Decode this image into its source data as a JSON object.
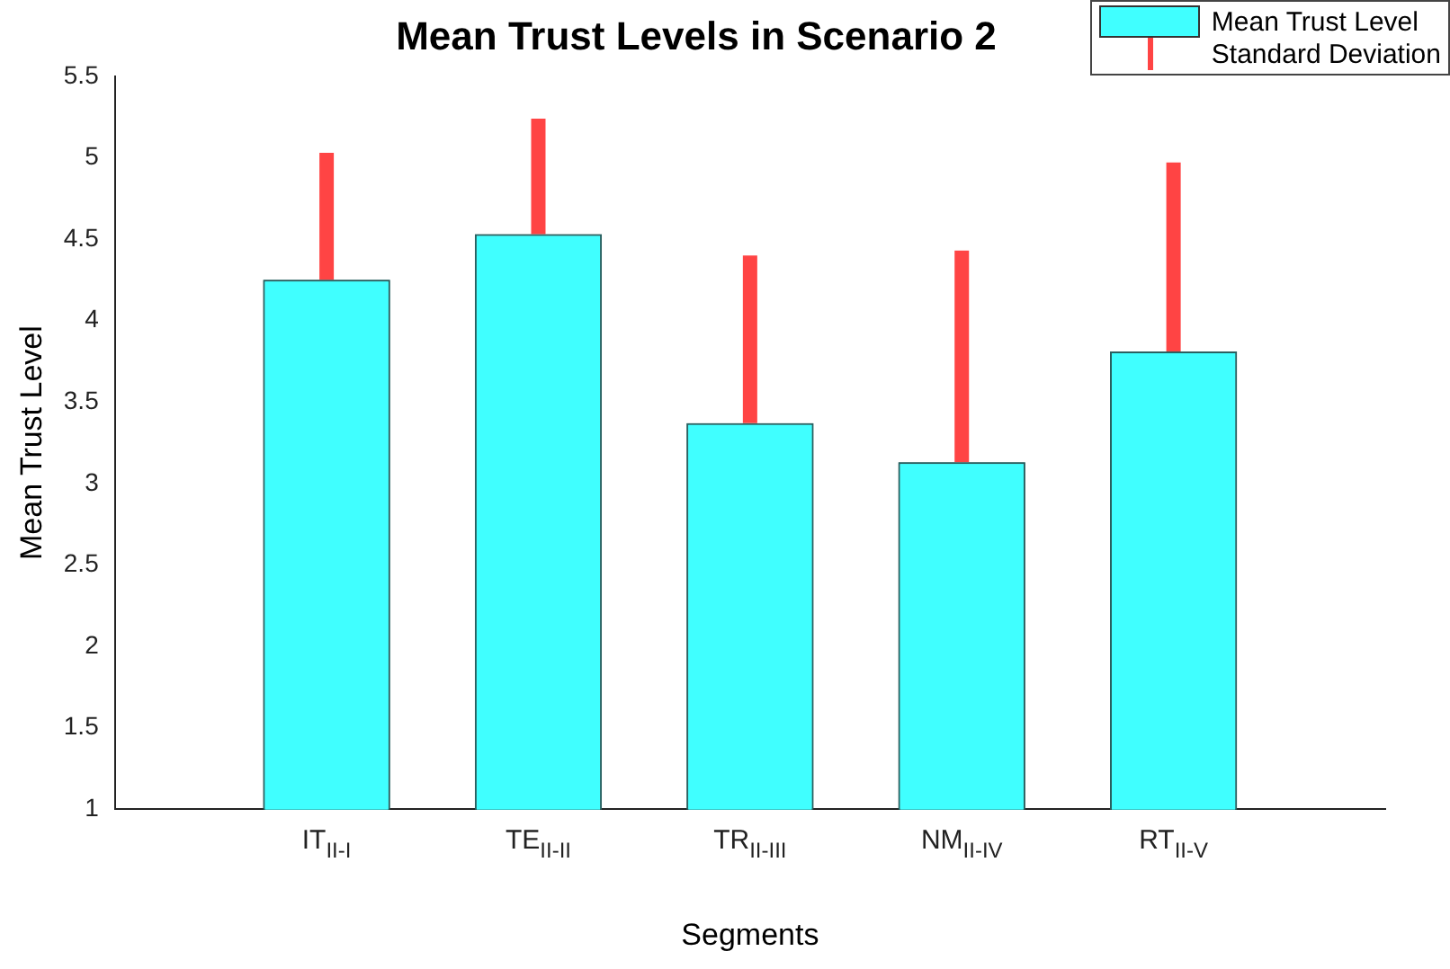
{
  "chart_data": {
    "type": "bar",
    "title": "Mean Trust Levels in Scenario 2",
    "xlabel": "Segments",
    "ylabel": "Mean Trust Level",
    "categories": [
      "IT$_{II-I}$",
      "TE$_{II-II}$",
      "TR$_{II-III}$",
      "NM$_{II-IV}$",
      "RT$_{II-V}$"
    ],
    "series": [
      {
        "name": "Mean Trust Level",
        "color": "#40ffff",
        "values": [
          4.25,
          4.53,
          3.37,
          3.13,
          3.81
        ],
        "errors": [
          [
            4.25,
            5.03
          ],
          [
            4.53,
            5.24
          ],
          [
            3.37,
            4.4
          ],
          [
            3.13,
            4.43
          ],
          [
            3.81,
            4.97
          ]
        ]
      }
    ],
    "annotations": [
      "Standard Deviation"
    ],
    "ylim": [
      1,
      5.5
    ],
    "yticks": [
      1,
      1.5,
      2,
      2.5,
      3,
      3.5,
      4,
      4.5,
      5,
      5.5
    ],
    "grid": false,
    "legend": "top right"
  }
}
